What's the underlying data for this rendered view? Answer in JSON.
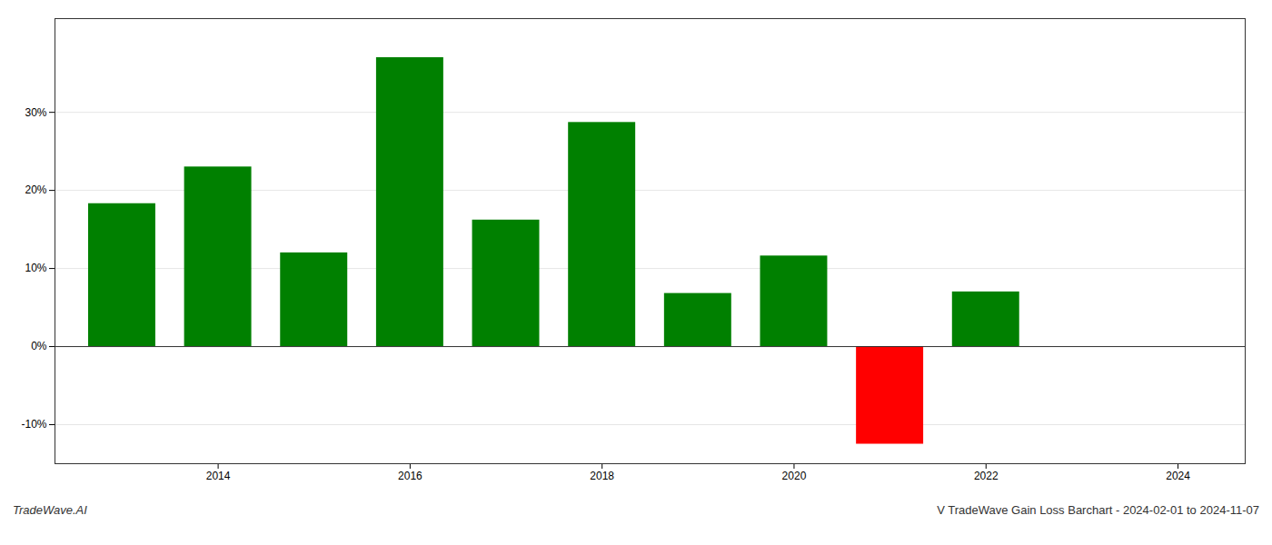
{
  "chart_data": {
    "type": "bar",
    "title": "V TradeWave Gain Loss Barchart - 2024-02-01 to 2024-11-07",
    "annotations": [
      "TradeWave.AI"
    ],
    "x": [
      2013,
      2014,
      2015,
      2016,
      2017,
      2018,
      2019,
      2020,
      2021,
      2022
    ],
    "values": [
      18.3,
      23.0,
      12.0,
      37.0,
      16.2,
      28.7,
      6.8,
      11.6,
      -12.5,
      7.0
    ],
    "colors": [
      "#008000",
      "#008000",
      "#008000",
      "#008000",
      "#008000",
      "#008000",
      "#008000",
      "#008000",
      "#ff0000",
      "#008000"
    ],
    "xlim": [
      2012.3,
      2024.7
    ],
    "xticks": [
      2014,
      2016,
      2018,
      2020,
      2022,
      2024
    ],
    "ylim": [
      -15,
      42
    ],
    "yticks": [
      {
        "value": -10,
        "label": "-10%"
      },
      {
        "value": 0,
        "label": "0%"
      },
      {
        "value": 10,
        "label": "10%"
      },
      {
        "value": 20,
        "label": "20%"
      },
      {
        "value": 30,
        "label": "30%"
      }
    ],
    "grid": true
  }
}
